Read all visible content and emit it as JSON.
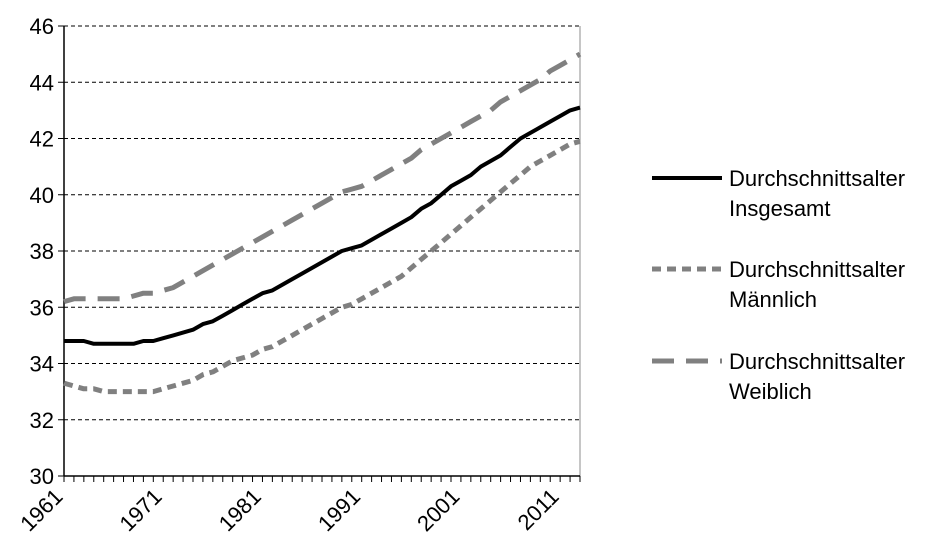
{
  "chart_data": {
    "type": "line",
    "title": "",
    "xlabel": "",
    "ylabel": "",
    "xlim": [
      1961,
      2013
    ],
    "ylim": [
      30,
      46
    ],
    "y_ticks": [
      "30",
      "32",
      "34",
      "36",
      "38",
      "40",
      "42",
      "44",
      "46"
    ],
    "x_tick_labels": [
      "1961",
      "1971",
      "1981",
      "1991",
      "2001",
      "2011"
    ],
    "grid": "horizontal dashed",
    "legend_position": "right",
    "x": [
      1961,
      1962,
      1963,
      1964,
      1965,
      1966,
      1967,
      1968,
      1969,
      1970,
      1971,
      1972,
      1973,
      1974,
      1975,
      1976,
      1977,
      1978,
      1979,
      1980,
      1981,
      1982,
      1983,
      1984,
      1985,
      1986,
      1987,
      1988,
      1989,
      1990,
      1991,
      1992,
      1993,
      1994,
      1995,
      1996,
      1997,
      1998,
      1999,
      2000,
      2001,
      2002,
      2003,
      2004,
      2005,
      2006,
      2007,
      2008,
      2009,
      2010,
      2011,
      2012,
      2013
    ],
    "series": [
      {
        "name": "Durchschnittsalter Insgesamt",
        "name_lines": [
          "Durchschnittsalter",
          "Insgesamt"
        ],
        "color": "#000000",
        "style": "solid",
        "values": [
          34.8,
          34.8,
          34.8,
          34.7,
          34.7,
          34.7,
          34.7,
          34.7,
          34.8,
          34.8,
          34.9,
          35.0,
          35.1,
          35.2,
          35.4,
          35.5,
          35.7,
          35.9,
          36.1,
          36.3,
          36.5,
          36.6,
          36.8,
          37.0,
          37.2,
          37.4,
          37.6,
          37.8,
          38.0,
          38.1,
          38.2,
          38.4,
          38.6,
          38.8,
          39.0,
          39.2,
          39.5,
          39.7,
          40.0,
          40.3,
          40.5,
          40.7,
          41.0,
          41.2,
          41.4,
          41.7,
          42.0,
          42.2,
          42.4,
          42.6,
          42.8,
          43.0,
          43.1
        ]
      },
      {
        "name": "Durchschnittsalter Männlich",
        "name_lines": [
          "Durchschnittsalter",
          "Männlich"
        ],
        "color": "#808080",
        "style": "short-dash",
        "values": [
          33.3,
          33.2,
          33.1,
          33.1,
          33.0,
          33.0,
          33.0,
          33.0,
          33.0,
          33.0,
          33.1,
          33.2,
          33.3,
          33.4,
          33.6,
          33.7,
          33.9,
          34.1,
          34.2,
          34.3,
          34.5,
          34.6,
          34.8,
          35.0,
          35.2,
          35.4,
          35.6,
          35.8,
          36.0,
          36.1,
          36.3,
          36.5,
          36.7,
          36.9,
          37.1,
          37.4,
          37.7,
          38.0,
          38.3,
          38.6,
          38.9,
          39.2,
          39.5,
          39.8,
          40.1,
          40.4,
          40.7,
          41.0,
          41.2,
          41.4,
          41.6,
          41.8,
          41.9
        ]
      },
      {
        "name": "Durchschnittsalter Weiblich",
        "name_lines": [
          "Durchschnittsalter",
          "Weiblich"
        ],
        "color": "#808080",
        "style": "long-dash",
        "values": [
          36.2,
          36.3,
          36.3,
          36.3,
          36.3,
          36.3,
          36.3,
          36.4,
          36.5,
          36.5,
          36.6,
          36.7,
          36.9,
          37.1,
          37.3,
          37.5,
          37.7,
          37.9,
          38.1,
          38.3,
          38.5,
          38.7,
          38.9,
          39.1,
          39.3,
          39.5,
          39.7,
          39.9,
          40.1,
          40.2,
          40.3,
          40.5,
          40.7,
          40.9,
          41.1,
          41.3,
          41.6,
          41.8,
          42.0,
          42.2,
          42.4,
          42.6,
          42.8,
          43.0,
          43.3,
          43.5,
          43.7,
          43.9,
          44.1,
          44.4,
          44.6,
          44.8,
          45.0
        ]
      }
    ]
  }
}
